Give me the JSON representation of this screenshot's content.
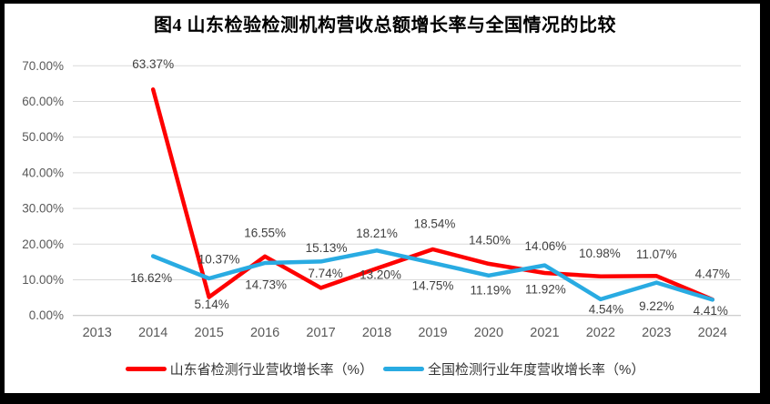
{
  "frame": {
    "border_color": "#000000",
    "background_color": "#ffffff"
  },
  "chart_data": {
    "type": "line",
    "title": "图4  山东检验检测机构营收总额增长率与全国情况的比较",
    "categories": [
      "2013",
      "2014",
      "2015",
      "2016",
      "2017",
      "2018",
      "2019",
      "2020",
      "2021",
      "2022",
      "2023",
      "2024"
    ],
    "y_axis": {
      "tick_labels": [
        "70.00%",
        "60.00%",
        "50.00%",
        "40.00%",
        "30.00%",
        "20.00%",
        "10.00%",
        "0.00%"
      ],
      "min": 0,
      "max": 70,
      "step": 10,
      "format": "percent-2-decimals"
    },
    "grid": "horizontal-only",
    "legend_position": "bottom-center",
    "colors": {
      "gridline": "#d9d9d9",
      "axis_line": "#bfbfbf",
      "tick_label": "#595959",
      "data_label": "#404040"
    },
    "series": [
      {
        "key": "shandong",
        "name": "山东省检测行业营收增长率（%）",
        "color": "#fe0000",
        "values": [
          null,
          63.37,
          5.14,
          16.55,
          7.74,
          13.2,
          18.54,
          14.5,
          11.92,
          10.98,
          11.07,
          4.47
        ],
        "data_labels": [
          null,
          "63.37%",
          "5.14%",
          "16.55%",
          "7.74%",
          "13.20%",
          "18.54%",
          "14.50%",
          "11.92%",
          "10.98%",
          "11.07%",
          "4.47%"
        ],
        "label_dy": [
          null,
          -28,
          8,
          -26,
          -16,
          7,
          -28,
          -26,
          18,
          -25,
          -24,
          -28
        ],
        "label_dx": [
          null,
          0,
          3,
          0,
          5,
          4,
          2,
          1,
          1,
          -1,
          0,
          0
        ]
      },
      {
        "key": "national",
        "name": "全国检测行业年度营收增长率（%）",
        "color": "#29abe2",
        "values": [
          null,
          16.62,
          10.37,
          14.73,
          15.13,
          18.21,
          14.75,
          11.19,
          14.06,
          4.54,
          9.22,
          4.41
        ],
        "data_labels": [
          null,
          "16.62%",
          "10.37%",
          "14.73%",
          "15.13%",
          "18.21%",
          "14.75%",
          "11.19%",
          "14.06%",
          "4.54%",
          "9.22%",
          "4.41%"
        ],
        "label_dy": [
          null,
          24,
          -21,
          24,
          -15,
          -19,
          25,
          16,
          -21,
          11,
          26,
          12
        ],
        "label_dx": [
          null,
          -2,
          11,
          1,
          6,
          0,
          0,
          2,
          1,
          6,
          0,
          -2
        ]
      }
    ]
  }
}
